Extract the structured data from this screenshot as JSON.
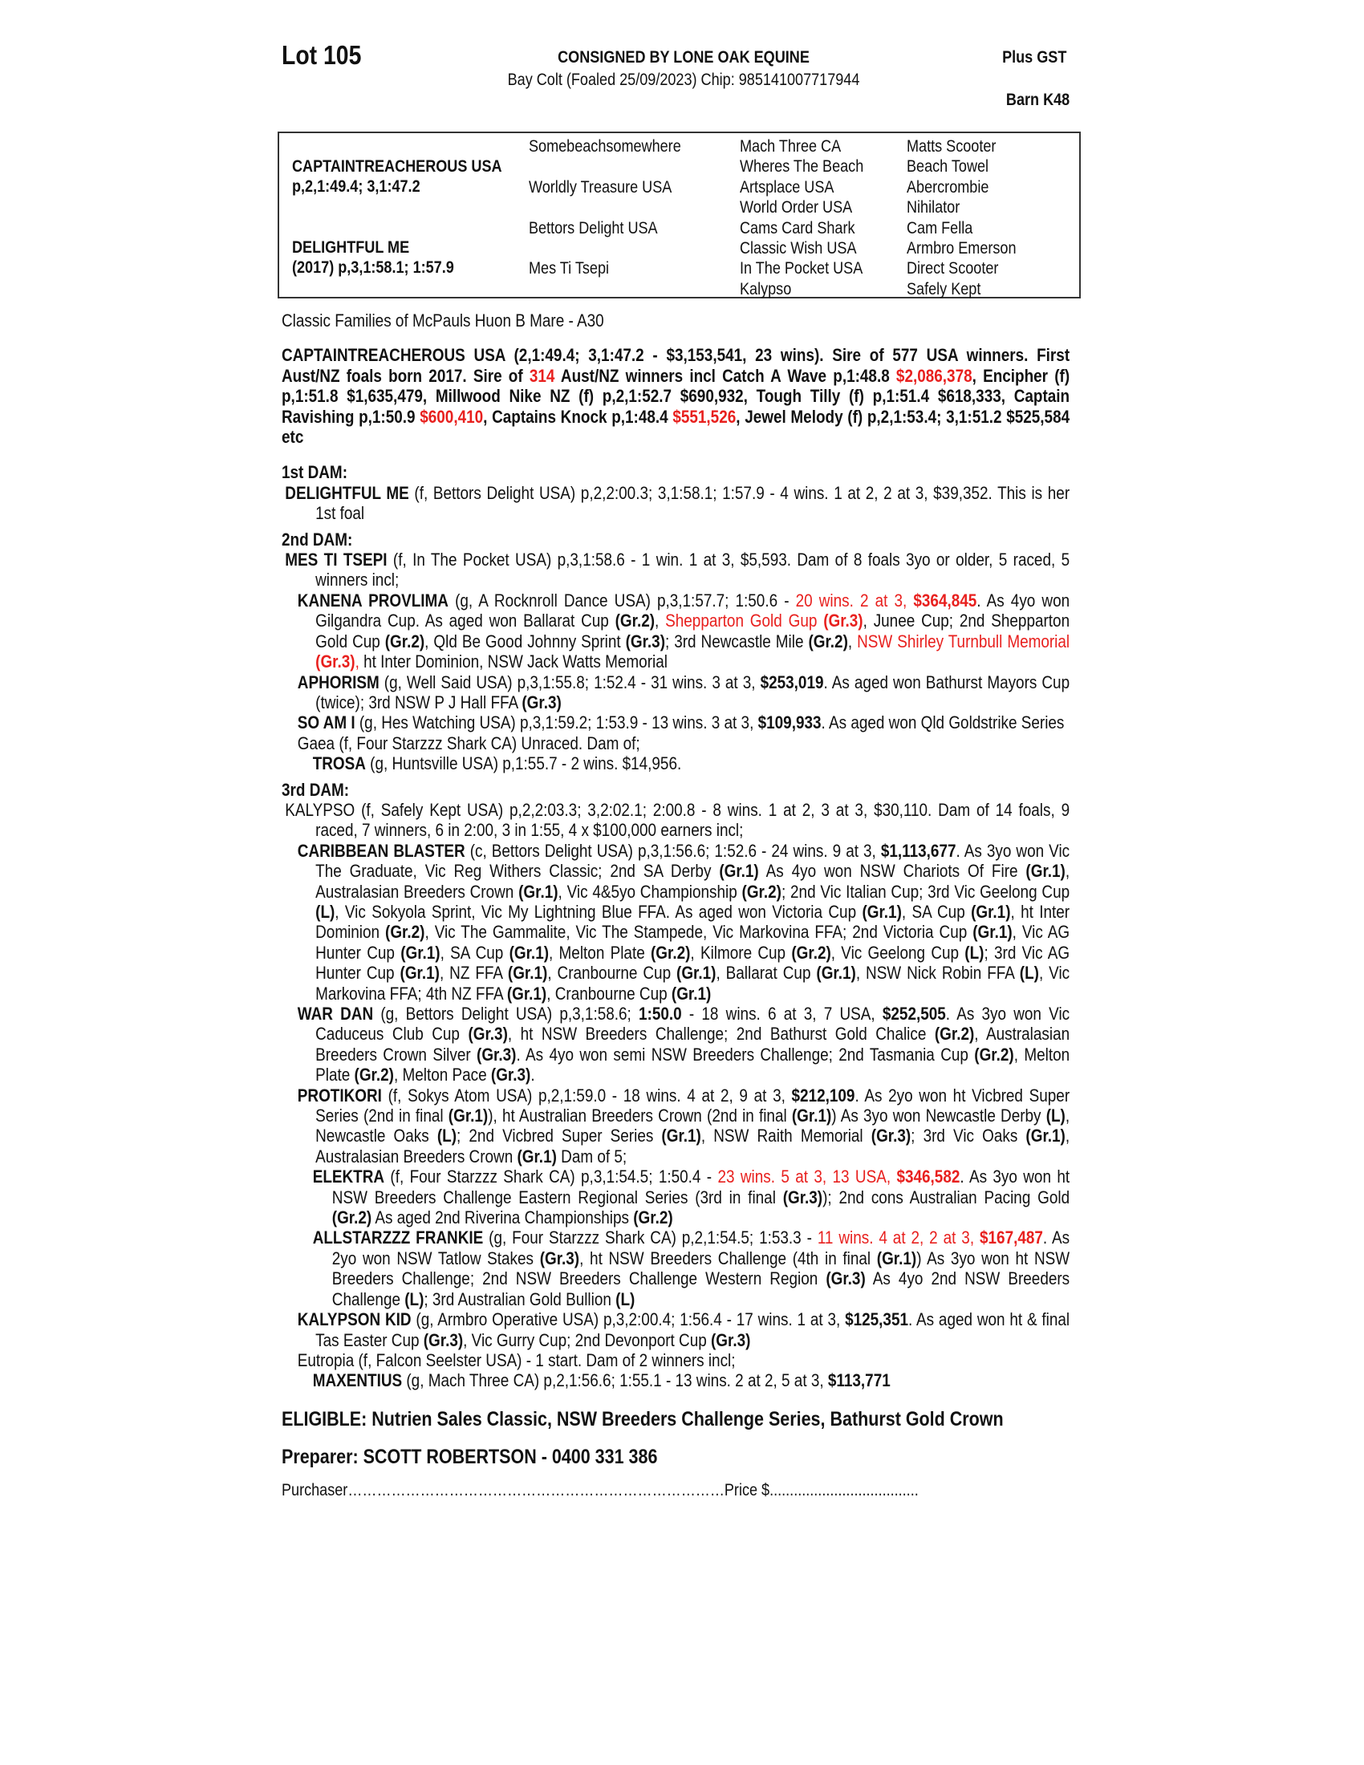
{
  "header": {
    "lot": "Lot 105",
    "consignor": "CONSIGNED BY LONE OAK EQUINE",
    "description": "Bay Colt (Foaled 25/09/2023) Chip: 985141007717944",
    "gst": "Plus GST",
    "barn": "Barn K48"
  },
  "pedigree": {
    "sire_name": "CAPTAINTREACHEROUS USA",
    "sire_record": "p,2,1:49.4; 3,1:47.2",
    "dam_name": "DELIGHTFUL ME",
    "dam_record": "(2017) p,3,1:58.1; 1:57.9",
    "gen2": [
      "Somebeachsomewhere",
      "Worldly Treasure USA",
      "Bettors Delight USA",
      "Mes Ti Tsepi"
    ],
    "gen3": [
      "Mach Three CA",
      "Wheres The Beach",
      "Artsplace USA",
      "World Order USA",
      "Cams Card Shark",
      "Classic Wish USA",
      "In The Pocket USA",
      "Kalypso"
    ],
    "gen4": [
      "Matts Scooter",
      "Beach Towel",
      "Abercrombie",
      "Nihilator",
      "Cam Fella",
      "Armbro Emerson",
      "Direct Scooter",
      "Safely Kept"
    ]
  },
  "colors": {
    "highlight": "#e8201e",
    "text": "#111111"
  },
  "family": "Classic Families of McPauls Huon B Mare - A30",
  "sire_paragraph": [
    [
      "CAPTAINTREACHEROUS USA (2,1:49.4; 3,1:47.2 - $3,153,541, 23 wins). Sire of 577 USA winners. First Aust/NZ foals born 2017. Sire of ",
      ""
    ],
    [
      "314",
      "r"
    ],
    [
      " Aust/NZ winners incl Catch A Wave p,1:48.8 ",
      ""
    ],
    [
      "$2,086,378",
      "r"
    ],
    [
      ", Encipher (f) p,1:51.8  $1,635,479, Millwood Nike NZ (f) p,2,1:52.7 $690,932, Tough Tilly (f) p,1:51.4 $618,333, Captain Ravishing p,1:50.9 ",
      ""
    ],
    [
      "$600,410",
      "r"
    ],
    [
      ", Captains Knock p,1:48.4 ",
      ""
    ],
    [
      "$551,526",
      "r"
    ],
    [
      ", Jewel Melody (f) p,2,1:53.4; 3,1:51.2 $525,584 etc",
      ""
    ]
  ],
  "sections": [
    {
      "heading": "1st DAM:",
      "entries": [
        {
          "level": "dam",
          "segments": [
            [
              "DELIGHTFUL ME",
              "b"
            ],
            [
              " (f, Bettors Delight USA) p,2,2:00.3; 3,1:58.1; 1:57.9 - 4 wins. 1 at 2, 2 at 3, $39,352. This is her 1st foal",
              ""
            ]
          ]
        }
      ]
    },
    {
      "heading": "2nd DAM:",
      "entries": [
        {
          "level": "dam",
          "segments": [
            [
              "MES TI TSEPI",
              "b"
            ],
            [
              " (f, In The Pocket USA) p,3,1:58.6 - 1 win. 1 at 3, $5,593. Dam of 8 foals 3yo or older, 5 raced, 5 winners incl;",
              ""
            ]
          ]
        },
        {
          "level": "l1",
          "segments": [
            [
              "KANENA PROVLIMA",
              "b"
            ],
            [
              " (g, A Rocknroll Dance USA) p,3,1:57.7; 1:50.6 - ",
              ""
            ],
            [
              "20 wins. 2 at 3, ",
              "r"
            ],
            [
              "$364,845",
              "rb"
            ],
            [
              ". As 4yo won Gilgandra Cup. As aged won Ballarat Cup ",
              ""
            ],
            [
              "(Gr.2)",
              "b"
            ],
            [
              ", ",
              ""
            ],
            [
              "Shepparton Gold Gup ",
              "r"
            ],
            [
              "(Gr.3)",
              "rb"
            ],
            [
              ", Junee Cup; 2nd Shepparton Gold Cup ",
              ""
            ],
            [
              "(Gr.2)",
              "b"
            ],
            [
              ", Qld Be Good Johnny Sprint ",
              ""
            ],
            [
              "(Gr.3)",
              "b"
            ],
            [
              "; 3rd Newcastle Mile ",
              ""
            ],
            [
              "(Gr.2)",
              "b"
            ],
            [
              ", ",
              ""
            ],
            [
              "NSW Shirley Turnbull Memorial ",
              "r"
            ],
            [
              "(Gr.3)",
              "rb"
            ],
            [
              ",",
              "r"
            ],
            [
              " ht Inter Dominion, NSW Jack Watts Memorial",
              ""
            ]
          ]
        },
        {
          "level": "l1",
          "segments": [
            [
              "APHORISM",
              "b"
            ],
            [
              " (g, Well Said USA) p,3,1:55.8; 1:52.4 - 31 wins. 3 at 3, ",
              ""
            ],
            [
              "$253,019",
              "b"
            ],
            [
              ". As aged won Bathurst Mayors Cup (twice); 3rd NSW P J Hall FFA ",
              ""
            ],
            [
              "(Gr.3)",
              "b"
            ]
          ]
        },
        {
          "level": "l1",
          "segments": [
            [
              "SO AM I",
              "b"
            ],
            [
              " (g, Hes Watching USA) p,3,1:59.2; 1:53.9 - 13 wins. 3 at 3, ",
              ""
            ],
            [
              "$109,933",
              "b"
            ],
            [
              ". As aged won Qld Goldstrike Series",
              ""
            ]
          ]
        },
        {
          "level": "l1",
          "segments": [
            [
              "Gaea (f, Four Starzzz Shark CA) Unraced. Dam of;",
              ""
            ]
          ]
        },
        {
          "level": "l2",
          "segments": [
            [
              "TROSA",
              "b"
            ],
            [
              " (g, Huntsville USA) p,1:55.7 - 2 wins. $14,956.",
              ""
            ]
          ]
        }
      ]
    },
    {
      "heading": "3rd DAM:",
      "entries": [
        {
          "level": "dam",
          "segments": [
            [
              "KALYPSO (f, Safely Kept USA) p,2,2:03.3; 3,2:02.1; 2:00.8 - 8 wins. 1 at 2, 3 at 3, $30,110. Dam of 14 foals, 9 raced, 7 winners, 6 in 2:00, 3 in 1:55, 4 x $100,000 earners incl;",
              ""
            ]
          ]
        },
        {
          "level": "l1",
          "segments": [
            [
              "CARIBBEAN BLASTER",
              "b"
            ],
            [
              " (c, Bettors Delight USA) p,3,1:56.6; 1:52.6 - 24 wins. 9 at 3, ",
              ""
            ],
            [
              "$1,113,677",
              "b"
            ],
            [
              ". As 3yo won Vic The Graduate, Vic Reg Withers Classic; 2nd SA Derby ",
              ""
            ],
            [
              "(Gr.1)",
              "b"
            ],
            [
              " As 4yo won NSW Chariots Of Fire ",
              ""
            ],
            [
              "(Gr.1)",
              "b"
            ],
            [
              ", Australasian Breeders Crown ",
              ""
            ],
            [
              "(Gr.1)",
              "b"
            ],
            [
              ", Vic 4&5yo Championship ",
              ""
            ],
            [
              "(Gr.2)",
              "b"
            ],
            [
              "; 2nd Vic Italian Cup; 3rd Vic Geelong Cup ",
              ""
            ],
            [
              "(L)",
              "b"
            ],
            [
              ", Vic Sokyola Sprint, Vic My Lightning Blue FFA. As aged won Victoria Cup ",
              ""
            ],
            [
              "(Gr.1)",
              "b"
            ],
            [
              ", SA Cup ",
              ""
            ],
            [
              "(Gr.1)",
              "b"
            ],
            [
              ", ht Inter Dominion ",
              ""
            ],
            [
              "(Gr.2)",
              "b"
            ],
            [
              ", Vic The Gammalite, Vic The Stampede, Vic Markovina FFA; 2nd Victoria Cup ",
              ""
            ],
            [
              "(Gr.1)",
              "b"
            ],
            [
              ", Vic AG Hunter Cup ",
              ""
            ],
            [
              "(Gr.1)",
              "b"
            ],
            [
              ", SA Cup ",
              ""
            ],
            [
              "(Gr.1)",
              "b"
            ],
            [
              ", Melton Plate ",
              ""
            ],
            [
              "(Gr.2)",
              "b"
            ],
            [
              ", Kilmore Cup ",
              ""
            ],
            [
              "(Gr.2)",
              "b"
            ],
            [
              ", Vic Geelong Cup ",
              ""
            ],
            [
              "(L)",
              "b"
            ],
            [
              "; 3rd Vic AG Hunter Cup ",
              ""
            ],
            [
              "(Gr.1)",
              "b"
            ],
            [
              ", NZ FFA ",
              ""
            ],
            [
              "(Gr.1)",
              "b"
            ],
            [
              ", Cranbourne Cup ",
              ""
            ],
            [
              "(Gr.1)",
              "b"
            ],
            [
              ", Ballarat Cup ",
              ""
            ],
            [
              "(Gr.1)",
              "b"
            ],
            [
              ", NSW Nick Robin FFA ",
              ""
            ],
            [
              "(L)",
              "b"
            ],
            [
              ", Vic Markovina FFA; 4th NZ FFA ",
              ""
            ],
            [
              "(Gr.1)",
              "b"
            ],
            [
              ", Cranbourne Cup ",
              ""
            ],
            [
              "(Gr.1)",
              "b"
            ]
          ]
        },
        {
          "level": "l1",
          "segments": [
            [
              "WAR DAN",
              "b"
            ],
            [
              " (g, Bettors Delight USA) p,3,1:58.6; ",
              ""
            ],
            [
              "1:50.0",
              "b"
            ],
            [
              " - 18 wins. 6 at 3, 7 USA, ",
              ""
            ],
            [
              "$252,505",
              "b"
            ],
            [
              ". As 3yo won Vic Caduceus Club Cup ",
              ""
            ],
            [
              "(Gr.3)",
              "b"
            ],
            [
              ", ht NSW Breeders Challenge; 2nd Bathurst Gold Chalice ",
              ""
            ],
            [
              "(Gr.2)",
              "b"
            ],
            [
              ", Australasian Breeders Crown Silver ",
              ""
            ],
            [
              "(Gr.3)",
              "b"
            ],
            [
              ". As 4yo won semi NSW Breeders Challenge; 2nd Tasmania Cup ",
              ""
            ],
            [
              "(Gr.2)",
              "b"
            ],
            [
              ", Melton Plate ",
              ""
            ],
            [
              "(Gr.2)",
              "b"
            ],
            [
              ", Melton Pace ",
              ""
            ],
            [
              "(Gr.3)",
              "b"
            ],
            [
              ".",
              ""
            ]
          ]
        },
        {
          "level": "l1",
          "segments": [
            [
              "PROTIKORI",
              "b"
            ],
            [
              " (f, Sokys Atom USA) p,2,1:59.0 - 18 wins. 4 at 2, 9 at 3, ",
              ""
            ],
            [
              "$212,109",
              "b"
            ],
            [
              ". As 2yo won ht Vicbred Super Series (2nd in final ",
              ""
            ],
            [
              "(Gr.1)",
              "b"
            ],
            [
              "), ht Australian Breeders Crown (2nd in final ",
              ""
            ],
            [
              "(Gr.1)",
              "b"
            ],
            [
              ") As 3yo won Newcastle Derby ",
              ""
            ],
            [
              "(L)",
              "b"
            ],
            [
              ", Newcastle Oaks ",
              ""
            ],
            [
              "(L)",
              "b"
            ],
            [
              "; 2nd Vicbred Super Series ",
              ""
            ],
            [
              "(Gr.1)",
              "b"
            ],
            [
              ", NSW Raith Memorial ",
              ""
            ],
            [
              "(Gr.3)",
              "b"
            ],
            [
              "; 3rd Vic Oaks ",
              ""
            ],
            [
              "(Gr.1)",
              "b"
            ],
            [
              ", Australasian Breeders Crown ",
              ""
            ],
            [
              "(Gr.1)",
              "b"
            ],
            [
              " Dam of 5;",
              ""
            ]
          ]
        },
        {
          "level": "l2",
          "segments": [
            [
              "ELEKTRA",
              "b"
            ],
            [
              " (f, Four Starzzz Shark CA) p,3,1:54.5; 1:50.4 - ",
              ""
            ],
            [
              "23 wins. 5 at 3, 13 USA, ",
              "r"
            ],
            [
              "$346,582",
              "rb"
            ],
            [
              ". As 3yo won ht NSW Breeders Challenge Eastern Regional Series (3rd in final ",
              ""
            ],
            [
              "(Gr.3)",
              "b"
            ],
            [
              "); 2nd cons Australian Pacing Gold ",
              ""
            ],
            [
              "(Gr.2)",
              "b"
            ],
            [
              " As aged 2nd Riverina Championships ",
              ""
            ],
            [
              "(Gr.2)",
              "b"
            ]
          ]
        },
        {
          "level": "l2",
          "segments": [
            [
              "ALLSTARZZZ FRANKIE",
              "b"
            ],
            [
              " (g, Four Starzzz Shark CA) p,2,1:54.5; 1:53.3 - ",
              ""
            ],
            [
              "11 wins. 4 at 2, 2 at 3, ",
              "r"
            ],
            [
              "$167,487",
              "rb"
            ],
            [
              ". As 2yo won NSW Tatlow Stakes ",
              ""
            ],
            [
              "(Gr.3)",
              "b"
            ],
            [
              ", ht NSW Breeders Challenge (4th in final ",
              ""
            ],
            [
              "(Gr.1)",
              "b"
            ],
            [
              ") As 3yo won ht NSW Breeders Challenge; 2nd NSW Breeders Challenge Western Region ",
              ""
            ],
            [
              "(Gr.3)",
              "b"
            ],
            [
              " As 4yo 2nd NSW Breeders Challenge ",
              ""
            ],
            [
              "(L)",
              "b"
            ],
            [
              "; 3rd Australian Gold Bullion ",
              ""
            ],
            [
              "(L)",
              "b"
            ]
          ]
        },
        {
          "level": "l1",
          "segments": [
            [
              "KALYPSON KID",
              "b"
            ],
            [
              " (g, Armbro Operative USA) p,3,2:00.4; 1:56.4 - 17 wins. 1 at 3, ",
              ""
            ],
            [
              "$125,351",
              "b"
            ],
            [
              ". As aged won ht & final Tas Easter Cup ",
              ""
            ],
            [
              "(Gr.3)",
              "b"
            ],
            [
              ", Vic Gurry Cup; 2nd Devonport Cup ",
              ""
            ],
            [
              "(Gr.3)",
              "b"
            ]
          ]
        },
        {
          "level": "l1",
          "segments": [
            [
              "Eutropia (f, Falcon Seelster USA) - 1 start. Dam of 2 winners incl;",
              ""
            ]
          ]
        },
        {
          "level": "l2",
          "segments": [
            [
              "MAXENTIUS",
              "b"
            ],
            [
              " (g, Mach Three CA) p,2,1:56.6; 1:55.1 - 13 wins. 2 at 2, 5 at 3, ",
              ""
            ],
            [
              "$113,771",
              "b"
            ]
          ]
        }
      ]
    }
  ],
  "eligible": "ELIGIBLE: Nutrien Sales Classic, NSW Breeders Challenge Series, Bathurst Gold Crown",
  "preparer": "Preparer: SCOTT ROBERTSON - 0400 331 386",
  "footer": {
    "purchaser_label": "Purchaser",
    "purchaser_dots": "……………………………………………………………………",
    "price_label": "Price $",
    "price_dots": "....................................."
  }
}
